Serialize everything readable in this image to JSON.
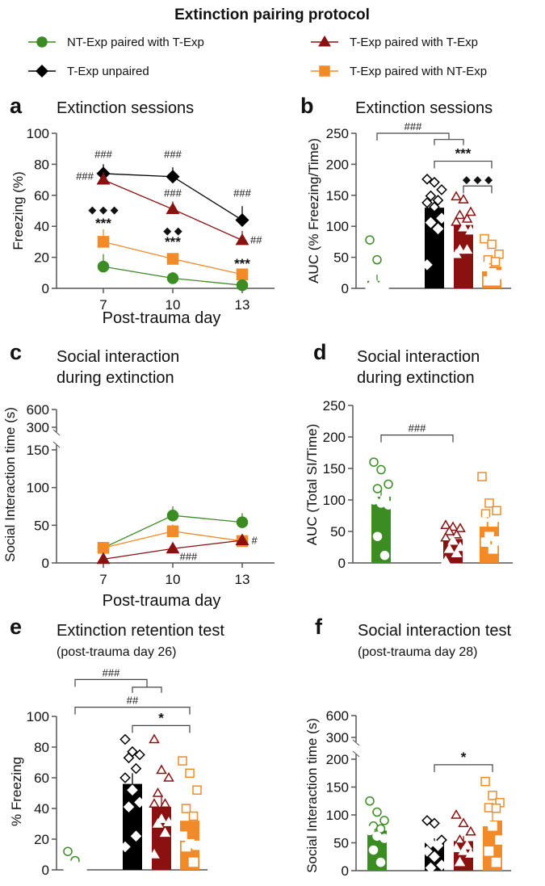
{
  "title": "Extinction pairing protocol",
  "colors": {
    "green": "#3a8c23",
    "black": "#000000",
    "red": "#8b1010",
    "orange": "#f28a28"
  },
  "legend": [
    {
      "label": "NT-Exp paired with T-Exp",
      "color": "#3a8c23",
      "marker": "circle"
    },
    {
      "label": "T-Exp paired with T-Exp",
      "color": "#8b1010",
      "marker": "triangle"
    },
    {
      "label": "T-Exp unpaired",
      "color": "#000000",
      "marker": "diamond"
    },
    {
      "label": "T-Exp paired with NT-Exp",
      "color": "#f28a28",
      "marker": "square"
    }
  ],
  "chart_data": [
    {
      "panel": "a",
      "type": "line",
      "title": "Extinction sessions",
      "xlabel": "Post-trauma day",
      "ylabel": "Freezing (%)",
      "x": [
        7,
        10,
        13
      ],
      "xticks": [
        "7",
        "10",
        "13"
      ],
      "yticks": [
        "0",
        "20",
        "40",
        "60",
        "80",
        "100"
      ],
      "ylim": [
        0,
        100
      ],
      "series": [
        {
          "name": "T-Exp unpaired",
          "color": "#000000",
          "marker": "diamond",
          "values": [
            74,
            72,
            44
          ],
          "sem": [
            6,
            6,
            9
          ]
        },
        {
          "name": "T-Exp paired with T-Exp",
          "color": "#8b1010",
          "marker": "triangle",
          "values": [
            70,
            51,
            31
          ],
          "sem": [
            5,
            5,
            6
          ]
        },
        {
          "name": "T-Exp paired with NT-Exp",
          "color": "#f28a28",
          "marker": "square",
          "values": [
            30,
            19,
            9
          ],
          "sem": [
            8,
            3,
            3
          ]
        },
        {
          "name": "NT-Exp paired with T-Exp",
          "color": "#3a8c23",
          "marker": "circle",
          "values": [
            14,
            6.5,
            2
          ],
          "sem": [
            8,
            4,
            1
          ]
        }
      ],
      "annotations": [
        {
          "text": "###",
          "x": 7,
          "y": 84,
          "cls": "ann",
          "anchor": "middle"
        },
        {
          "text": "###",
          "x": 6.2,
          "y": 70,
          "cls": "ann",
          "anchor": "middle"
        },
        {
          "text": "◆ ◆ ◆",
          "x": 7,
          "y": 48.5,
          "cls": "ann",
          "anchor": "middle"
        },
        {
          "text": "***",
          "x": 7,
          "y": 39,
          "cls": "star",
          "anchor": "middle"
        },
        {
          "text": "###",
          "x": 10,
          "y": 84,
          "cls": "ann",
          "anchor": "middle"
        },
        {
          "text": "###",
          "x": 10,
          "y": 59,
          "cls": "ann",
          "anchor": "middle"
        },
        {
          "text": "◆ ◆",
          "x": 10,
          "y": 35,
          "cls": "ann",
          "anchor": "middle"
        },
        {
          "text": "***",
          "x": 10,
          "y": 27,
          "cls": "star",
          "anchor": "middle"
        },
        {
          "text": "###",
          "x": 13,
          "y": 59,
          "cls": "ann",
          "anchor": "middle"
        },
        {
          "text": "##",
          "x": 13.35,
          "y": 29,
          "cls": "ann",
          "anchor": "start"
        },
        {
          "text": "***",
          "x": 13,
          "y": 13,
          "cls": "star",
          "anchor": "middle"
        }
      ]
    },
    {
      "panel": "b",
      "type": "bar",
      "title": "Extinction sessions",
      "ylabel": "AUC (% Freezing/Time)",
      "yticks": [
        "0",
        "50",
        "100",
        "150",
        "200",
        "250"
      ],
      "ylim": [
        0,
        250
      ],
      "groups": [
        {
          "name": "NT-Exp paired with T-Exp",
          "color": "#3a8c23",
          "marker": "circle",
          "mean": 12,
          "sem": 10,
          "points": [
            78,
            46,
            10,
            8,
            3,
            2,
            2,
            1
          ]
        },
        {
          "name": "T-Exp unpaired",
          "color": "#000000",
          "marker": "diamond",
          "mean": 130,
          "sem": 11,
          "points": [
            176,
            171,
            159,
            149,
            142,
            138,
            131,
            113,
            106,
            96,
            38
          ]
        },
        {
          "name": "T-Exp paired with T-Exp",
          "color": "#8b1010",
          "marker": "triangle",
          "mean": 102,
          "sem": 9,
          "points": [
            148,
            143,
            123,
            118,
            112,
            107,
            98,
            93,
            62,
            62,
            55
          ]
        },
        {
          "name": "T-Exp paired with NT-Exp",
          "color": "#f28a28",
          "marker": "square",
          "mean": 35,
          "sem": 8,
          "points": [
            80,
            71,
            55,
            46,
            43,
            35,
            25,
            22,
            12,
            12
          ]
        }
      ],
      "brackets": [
        {
          "from": 0,
          "to": [
            1,
            2
          ],
          "y": 250,
          "sub_y": 240,
          "label": "###",
          "cls": "ann"
        },
        {
          "from": 1,
          "to": [
            3
          ],
          "y": 205,
          "label": "***",
          "cls": "star"
        },
        {
          "from": 2,
          "to": [
            3
          ],
          "y": 165,
          "label": "◆ ◆ ◆",
          "cls": "ann"
        }
      ]
    },
    {
      "panel": "c",
      "type": "line",
      "title": "Social interaction",
      "title2": "during extinction",
      "xlabel": "Post-trauma day",
      "ylabel": "Social Interaction time (s)",
      "x": [
        7,
        10,
        13
      ],
      "xticks": [
        "7",
        "10",
        "13"
      ],
      "yticks": [
        "0",
        "50",
        "100",
        "150",
        "300",
        "600"
      ],
      "ylim": [
        0,
        600
      ],
      "axis_break": [
        150,
        300
      ],
      "series": [
        {
          "name": "NT-Exp paired with T-Exp",
          "color": "#3a8c23",
          "marker": "circle",
          "values": [
            20,
            63,
            54
          ],
          "sem": [
            5,
            12,
            12
          ]
        },
        {
          "name": "T-Exp paired with NT-Exp",
          "color": "#f28a28",
          "marker": "square",
          "values": [
            20,
            42,
            29
          ],
          "sem": [
            5,
            9,
            3
          ]
        },
        {
          "name": "T-Exp paired with T-Exp",
          "color": "#8b1010",
          "marker": "triangle",
          "values": [
            5,
            19,
            30
          ],
          "sem": [
            2,
            3,
            5
          ]
        }
      ],
      "annotations": [
        {
          "text": "###",
          "x": 10.3,
          "y": 4,
          "cls": "ann",
          "anchor": "start"
        },
        {
          "text": "#",
          "x": 13.4,
          "y": 25,
          "cls": "ann",
          "anchor": "start"
        }
      ]
    },
    {
      "panel": "d",
      "type": "bar",
      "title": "Social interaction",
      "title2": "during extinction",
      "ylabel": "AUC (Total SI/Time)",
      "yticks": [
        "0",
        "50",
        "100",
        "150",
        "200",
        "250"
      ],
      "ylim": [
        0,
        250
      ],
      "groups": [
        {
          "name": "NT-Exp paired with T-Exp",
          "color": "#3a8c23",
          "marker": "circle",
          "mean": 105,
          "sem": 14,
          "points": [
            160,
            148,
            125,
            118,
            102,
            100,
            95,
            92,
            42,
            12
          ]
        },
        {
          "name": "T-Exp paired with T-Exp",
          "color": "#8b1010",
          "marker": "triangle",
          "mean": 38,
          "sem": 5,
          "points": [
            60,
            57,
            55,
            50,
            45,
            40,
            35,
            25,
            22,
            15,
            3
          ]
        },
        {
          "name": "T-Exp paired with NT-Exp",
          "color": "#f28a28",
          "marker": "square",
          "mean": 65,
          "sem": 10,
          "points": [
            137,
            95,
            83,
            78,
            65,
            65,
            42,
            35,
            33,
            22
          ]
        }
      ],
      "brackets": [
        {
          "from": 0,
          "to": [
            1
          ],
          "y": 203,
          "label": "###",
          "cls": "ann"
        }
      ]
    },
    {
      "panel": "e",
      "type": "bar",
      "title": "Extinction retention test",
      "subtitle": "(post-trauma  day  26)",
      "ylabel": "% Freezing",
      "yticks": [
        "0",
        "20",
        "40",
        "60",
        "80",
        "100"
      ],
      "ylim": [
        0,
        100
      ],
      "groups": [
        {
          "name": "NT-Exp paired with T-Exp",
          "color": "#3a8c23",
          "marker": "circle",
          "mean": 3,
          "sem": 1,
          "points": [
            12,
            6,
            3,
            3,
            2,
            1,
            1,
            0.5
          ]
        },
        {
          "name": "T-Exp unpaired",
          "color": "#000000",
          "marker": "diamond",
          "mean": 56,
          "sem": 7,
          "points": [
            85,
            77,
            75,
            73,
            66,
            60,
            52,
            44,
            41,
            22,
            15
          ]
        },
        {
          "name": "T-Exp paired with T-Exp",
          "color": "#8b1010",
          "marker": "triangle",
          "mean": 41,
          "sem": 7,
          "points": [
            85,
            65,
            60,
            50,
            43,
            43,
            33,
            31,
            30,
            24,
            10
          ]
        },
        {
          "name": "T-Exp paired with NT-Exp",
          "color": "#f28a28",
          "marker": "square",
          "mean": 32,
          "sem": 7,
          "points": [
            71,
            63,
            52,
            40,
            35,
            22,
            17,
            16,
            15,
            5
          ]
        }
      ],
      "brackets": [
        {
          "from": 0,
          "to": [
            1,
            2
          ],
          "y": 124,
          "sub_y": 119,
          "label": "###",
          "cls": "ann"
        },
        {
          "from": 0,
          "to": [
            3
          ],
          "y": 106,
          "label": "##",
          "cls": "ann"
        },
        {
          "from": 1,
          "to": [
            3
          ],
          "y": 94,
          "label": "*",
          "cls": "star"
        }
      ]
    },
    {
      "panel": "f",
      "type": "bar",
      "title": "Social interaction test",
      "subtitle": "(post-trauma  day  28)",
      "ylabel": "Social Interaction time (s)",
      "yticks": [
        "0",
        "50",
        "100",
        "150",
        "200",
        "300",
        "600"
      ],
      "ylim": [
        0,
        600
      ],
      "axis_break": [
        200,
        300
      ],
      "groups": [
        {
          "name": "NT-Exp paired with T-Exp",
          "color": "#3a8c23",
          "marker": "circle",
          "mean": 72,
          "sem": 10,
          "points": [
            125,
            105,
            90,
            80,
            75,
            72,
            62,
            58,
            37,
            15
          ]
        },
        {
          "name": "T-Exp unpaired",
          "color": "#000000",
          "marker": "diamond",
          "mean": 50,
          "sem": 8,
          "points": [
            90,
            85,
            55,
            50,
            45,
            35,
            25,
            10,
            5
          ]
        },
        {
          "name": "T-Exp paired with T-Exp",
          "color": "#8b1010",
          "marker": "triangle",
          "mean": 53,
          "sem": 9,
          "points": [
            100,
            85,
            70,
            55,
            45,
            40,
            35,
            30,
            15
          ]
        },
        {
          "name": "T-Exp paired with NT-Exp",
          "color": "#f28a28",
          "marker": "square",
          "mean": 90,
          "sem": 15,
          "points": [
            160,
            135,
            122,
            113,
            112,
            88,
            80,
            55,
            35,
            15
          ]
        }
      ],
      "brackets": [
        {
          "from": 1,
          "to": [
            3
          ],
          "y": 190,
          "label": "*",
          "cls": "star"
        }
      ]
    }
  ]
}
